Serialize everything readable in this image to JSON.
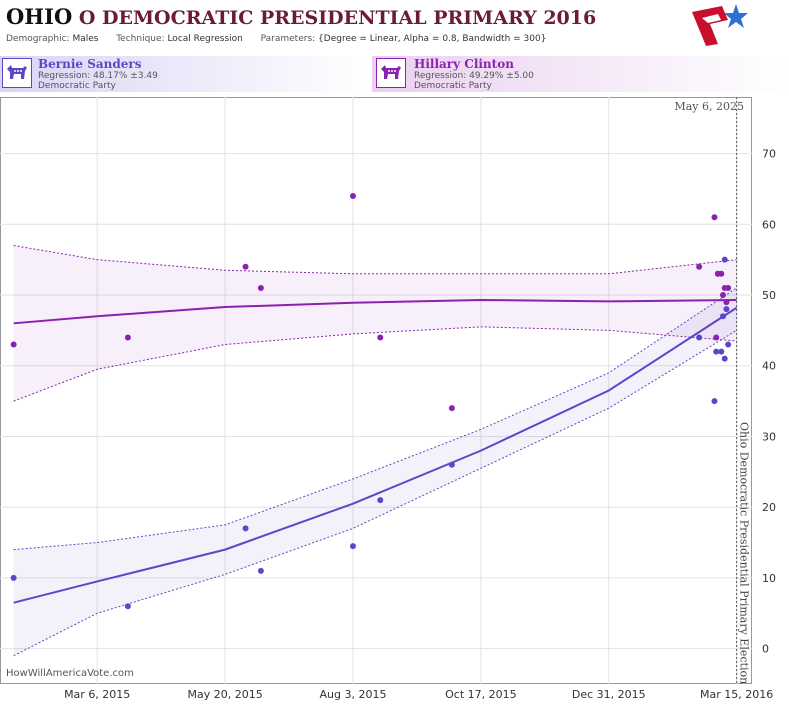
{
  "header": {
    "title_state": "OHIO",
    "title_rest": " O DEMOCRATIC PRESIDENTIAL PRIMARY 2016",
    "demographic_label": "Demographic:",
    "demographic_value": "Males",
    "technique_label": "Technique:",
    "technique_value": "Local Regression",
    "parameters_label": "Parameters:",
    "parameters_value": "{Degree = Linear, Alpha = 0.8, Bandwidth = 300}"
  },
  "candidates": [
    {
      "name": "Bernie Sanders",
      "regression": "Regression: 48.17% ±3.49",
      "party": "Democratic Party",
      "color": "#5b48c8"
    },
    {
      "name": "Hillary Clinton",
      "regression": "Regression: 49.29% ±5.00",
      "party": "Democratic Party",
      "color": "#8a22b0"
    }
  ],
  "watermark": "HowWillAmericaVote.com",
  "chart_data": {
    "type": "scatter",
    "x_ticks": [
      "Mar 6, 2015",
      "May 20, 2015",
      "Aug 3, 2015",
      "Oct 17, 2015",
      "Dec 31, 2015",
      "Mar 15, 2016"
    ],
    "y_ticks": [
      0,
      10,
      20,
      30,
      40,
      50,
      60,
      70
    ],
    "xlim": [
      "2015-01-08",
      "2016-03-24"
    ],
    "ylim": [
      -5,
      78
    ],
    "grid": true,
    "annotations": {
      "today_label": "May 6, 2025",
      "election_label": "Ohio Democratic Presidential Primary Election",
      "election_date": "2016-03-15"
    },
    "series": [
      {
        "name": "Bernie Sanders",
        "color": "#5b48c8",
        "points": [
          [
            "2015-01-16",
            10
          ],
          [
            "2015-03-24",
            6
          ],
          [
            "2015-06-01",
            17
          ],
          [
            "2015-06-10",
            11
          ],
          [
            "2015-08-03",
            14.5
          ],
          [
            "2015-08-19",
            21
          ],
          [
            "2015-09-30",
            26
          ],
          [
            "2016-02-22",
            44
          ],
          [
            "2016-03-02",
            35
          ],
          [
            "2016-03-03",
            42
          ],
          [
            "2016-03-06",
            42
          ],
          [
            "2016-03-08",
            41
          ],
          [
            "2016-03-09",
            48
          ],
          [
            "2016-03-07",
            47
          ],
          [
            "2016-03-10",
            43
          ],
          [
            "2016-03-04",
            53
          ],
          [
            "2016-03-08",
            55
          ]
        ],
        "trend": [
          [
            "2015-01-16",
            6.5
          ],
          [
            "2015-03-06",
            9.5
          ],
          [
            "2015-05-20",
            14
          ],
          [
            "2015-08-03",
            20.5
          ],
          [
            "2015-10-17",
            28
          ],
          [
            "2015-12-31",
            36.5
          ],
          [
            "2016-03-15",
            48.2
          ]
        ],
        "band_upper": [
          [
            "2015-01-16",
            14
          ],
          [
            "2015-03-06",
            15
          ],
          [
            "2015-05-20",
            17.5
          ],
          [
            "2015-08-03",
            24
          ],
          [
            "2015-10-17",
            31
          ],
          [
            "2015-12-31",
            39
          ],
          [
            "2016-03-15",
            51
          ]
        ],
        "band_lower": [
          [
            "2015-01-16",
            -1
          ],
          [
            "2015-03-06",
            5
          ],
          [
            "2015-05-20",
            10.5
          ],
          [
            "2015-08-03",
            17
          ],
          [
            "2015-10-17",
            25.5
          ],
          [
            "2015-12-31",
            34
          ],
          [
            "2016-03-15",
            45
          ]
        ]
      },
      {
        "name": "Hillary Clinton",
        "color": "#8a22b0",
        "points": [
          [
            "2015-01-16",
            43
          ],
          [
            "2015-03-24",
            44
          ],
          [
            "2015-06-01",
            54
          ],
          [
            "2015-06-10",
            51
          ],
          [
            "2015-08-03",
            64
          ],
          [
            "2015-08-19",
            44
          ],
          [
            "2015-09-30",
            34
          ],
          [
            "2016-02-22",
            54
          ],
          [
            "2016-03-02",
            61
          ],
          [
            "2016-03-03",
            44
          ],
          [
            "2016-03-04",
            53
          ],
          [
            "2016-03-06",
            53
          ],
          [
            "2016-03-07",
            50
          ],
          [
            "2016-03-08",
            51
          ],
          [
            "2016-03-10",
            51
          ],
          [
            "2016-03-09",
            49
          ]
        ],
        "trend": [
          [
            "2015-01-16",
            46
          ],
          [
            "2015-03-06",
            47
          ],
          [
            "2015-05-20",
            48.3
          ],
          [
            "2015-08-03",
            48.9
          ],
          [
            "2015-10-17",
            49.3
          ],
          [
            "2015-12-31",
            49.1
          ],
          [
            "2016-03-15",
            49.3
          ]
        ],
        "band_upper": [
          [
            "2015-01-16",
            57
          ],
          [
            "2015-03-06",
            55
          ],
          [
            "2015-05-20",
            53.5
          ],
          [
            "2015-08-03",
            53
          ],
          [
            "2015-10-17",
            53
          ],
          [
            "2015-12-31",
            53
          ],
          [
            "2016-03-15",
            55
          ]
        ],
        "band_lower": [
          [
            "2015-01-16",
            35
          ],
          [
            "2015-03-06",
            39.5
          ],
          [
            "2015-05-20",
            43
          ],
          [
            "2015-08-03",
            44.5
          ],
          [
            "2015-10-17",
            45.5
          ],
          [
            "2015-12-31",
            45
          ],
          [
            "2016-03-15",
            43.5
          ]
        ]
      }
    ]
  }
}
